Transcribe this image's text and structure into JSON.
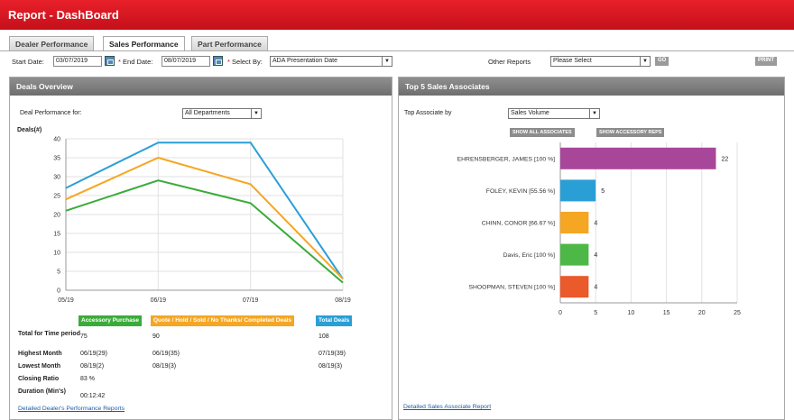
{
  "header": {
    "title": "Report - DashBoard"
  },
  "tabs": [
    "Dealer Performance",
    "Sales Performance",
    "Part Performance"
  ],
  "active_tab": "Sales Performance",
  "filters": {
    "start_label": "Start Date:",
    "start_value": "03/07/2019",
    "end_label": "End Date:",
    "end_value": "08/07/2019",
    "select_by_label": "Select By:",
    "select_by_value": "ADA Presentation Date",
    "other_reports_label": "Other Reports",
    "other_reports_value": "Please Select",
    "go_label": "GO",
    "print_label": "PRINT"
  },
  "deals_overview": {
    "title": "Deals Overview",
    "deal_perf_label": "Deal Performance for:",
    "deal_perf_value": "All Departments",
    "legend": [
      {
        "label": "Accessory Purchase",
        "color": "#3aab3a"
      },
      {
        "label": "Quote / Hold / Sold / No Thanks/ Completed Deals",
        "color": "#f5a623"
      },
      {
        "label": "Total Deals",
        "color": "#2a9fd6"
      }
    ],
    "stats": [
      {
        "label": "Total for Time period",
        "values": [
          "75",
          "90",
          "108"
        ]
      },
      {
        "label": "Highest Month",
        "values": [
          "06/19(29)",
          "06/19(35)",
          "07/19(39)"
        ]
      },
      {
        "label": "Lowest Month",
        "values": [
          "08/19(2)",
          "08/19(3)",
          "08/19(3)"
        ]
      },
      {
        "label": "Closing Ratio",
        "values": [
          "83 %",
          "",
          ""
        ]
      },
      {
        "label": "Duration (Min's)",
        "values": [
          "00:12:42",
          "",
          ""
        ]
      }
    ],
    "link": "Detailed Dealer's Performance Reports"
  },
  "top5": {
    "title": "Top 5 Sales Associates",
    "top_assoc_label": "Top Associate by",
    "top_assoc_value": "Sales Volume",
    "btn_all": "SHOW ALL ASSOCIATES",
    "btn_acc": "SHOW ACCESSORY REPS",
    "link": "Detailed Sales Associate Report"
  },
  "chart_data": [
    {
      "type": "line",
      "ylabel": "Deals(#)",
      "x": [
        "05/19",
        "06/19",
        "07/19",
        "08/19"
      ],
      "ylim": [
        0,
        40
      ],
      "yticks": [
        0,
        5,
        10,
        15,
        20,
        25,
        30,
        35,
        40
      ],
      "grid": true,
      "series": [
        {
          "name": "Total Deals",
          "color": "#2a9fd6",
          "values": [
            27,
            39,
            39,
            3
          ]
        },
        {
          "name": "Quote / Hold / Sold / No Thanks/ Completed Deals",
          "color": "#f5a623",
          "values": [
            24,
            35,
            28,
            3
          ]
        },
        {
          "name": "Accessory Purchase",
          "color": "#3aab3a",
          "values": [
            21,
            29,
            23,
            2
          ]
        }
      ]
    },
    {
      "type": "bar",
      "orientation": "horizontal",
      "categories": [
        "EHRENSBERGER, JAMES [100 %]",
        "FOLEY, KEVIN [55.56 %]",
        "CHINN, CONOR [66.67 %]",
        "Davis, Eric [100 %]",
        "SHOOPMAN, STEVEN [100 %]"
      ],
      "values": [
        22,
        5,
        4,
        4,
        4
      ],
      "colors": [
        "#a8479a",
        "#2a9fd6",
        "#f5a623",
        "#4db848",
        "#ea5a2a"
      ],
      "xlim": [
        0,
        25
      ],
      "xticks": [
        0,
        5,
        10,
        15,
        20,
        25
      ],
      "grid": true
    }
  ]
}
